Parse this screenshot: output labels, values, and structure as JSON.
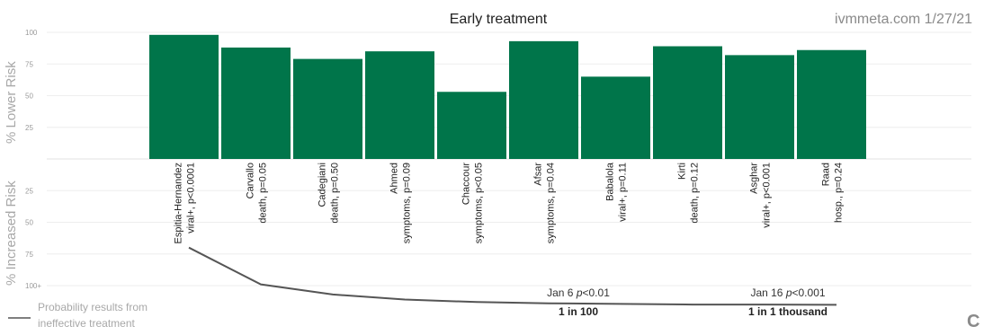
{
  "chart_data": {
    "type": "bar",
    "title": "Early treatment",
    "source": "ivmmeta.com 1/27/21",
    "ylabel_top": "% Lower Risk",
    "ylabel_bottom": "% Increased Risk",
    "yticks_top": [
      "100",
      "75",
      "50",
      "25"
    ],
    "yticks_bottom": [
      "25",
      "50",
      "75",
      "100+"
    ],
    "ylim": [
      0,
      100
    ],
    "bar_color": "#00754a",
    "grid": true,
    "categories": [
      {
        "name": "Espitia-Hernandez",
        "detail": "viral+, p<0.0001"
      },
      {
        "name": "Carvallo",
        "detail": "death, p=0.05"
      },
      {
        "name": "Cadegiani",
        "detail": "death, p=0.50"
      },
      {
        "name": "Ahmed",
        "detail": "symptoms, p=0.09"
      },
      {
        "name": "Chaccour",
        "detail": "symptoms, p<0.05"
      },
      {
        "name": "Afsar",
        "detail": "symptoms, p=0.04"
      },
      {
        "name": "Babalola",
        "detail": "viral+, p=0.11"
      },
      {
        "name": "Kirti",
        "detail": "death, p=0.12"
      },
      {
        "name": "Asghar",
        "detail": "viral+, p<0.001"
      },
      {
        "name": "Raad",
        "detail": "hosp., p=0.24"
      }
    ],
    "values": [
      98,
      88,
      79,
      85,
      53,
      93,
      65,
      89,
      82,
      86
    ],
    "probability_curve": {
      "color": "#555555",
      "values": [
        70,
        99,
        107,
        111,
        113,
        114,
        114.5,
        115,
        115,
        115.2
      ]
    },
    "annotations": [
      {
        "line1": "Jan 6 ",
        "pitalic": "p",
        "line1_rest": "<0.01",
        "line2": "1 in 100"
      },
      {
        "line1": "Jan 16 ",
        "pitalic": "p",
        "line1_rest": "<0.001",
        "line2": "1 in 1 thousand"
      }
    ],
    "legend": {
      "line1": "Probability results from",
      "line2": "ineffective treatment"
    },
    "corner_letter": "C"
  }
}
